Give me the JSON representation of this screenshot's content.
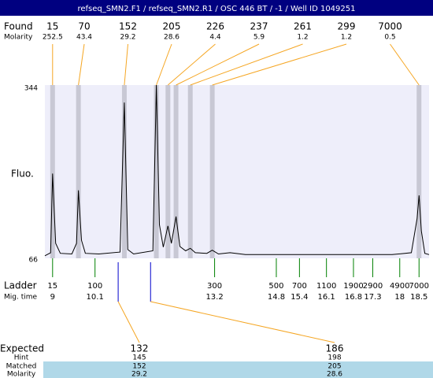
{
  "chart_data": {
    "type": "electropherogram",
    "title": "refseq_SMN2.F1 / refseq_SMN2.R1 / OSC 446 BT / -1 / Well ID 1049251",
    "ylabel": "Fluo.",
    "ylim": [
      66,
      344
    ],
    "yticks": [
      66,
      344
    ],
    "xlim": [
      8.8,
      18.76
    ],
    "trace": {
      "color": "#000000",
      "x": [
        8.8,
        8.95,
        9.0,
        9.08,
        9.2,
        9.5,
        9.62,
        9.67,
        9.75,
        9.85,
        10.2,
        10.75,
        10.86,
        10.95,
        11.1,
        11.6,
        11.69,
        11.77,
        11.87,
        11.99,
        12.08,
        12.2,
        12.3,
        12.45,
        12.57,
        12.7,
        13.0,
        13.14,
        13.3,
        13.6,
        14.0,
        15.0,
        16.0,
        17.0,
        17.8,
        18.3,
        18.45,
        18.5,
        18.56,
        18.65,
        18.76
      ],
      "values": [
        70,
        75,
        202,
        90,
        74,
        73,
        90,
        175,
        95,
        74,
        73,
        76,
        316,
        80,
        73,
        78,
        344,
        120,
        84,
        118,
        90,
        133,
        85,
        78,
        82,
        75,
        74,
        79,
        73,
        75,
        72,
        72,
        72,
        72,
        72,
        75,
        130,
        167,
        110,
        74,
        72
      ]
    },
    "found": {
      "label": "Found",
      "molarity_label": "Molarity",
      "color": "#f5a623",
      "sizes": [
        15,
        70,
        152,
        205,
        226,
        237,
        261,
        299,
        7000
      ],
      "molarity": [
        252.5,
        43.4,
        29.2,
        28.6,
        4.4,
        5.9,
        1.2,
        1.2,
        0.5
      ],
      "mig_time": [
        9.0,
        9.67,
        10.86,
        11.69,
        11.99,
        12.2,
        12.57,
        13.14,
        18.5
      ]
    },
    "ladder": {
      "label": "Ladder",
      "time_label": "Mig. time",
      "color": "#008000",
      "sizes": [
        15,
        100,
        300,
        500,
        700,
        1100,
        1900,
        2900,
        4900,
        7000
      ],
      "mig_time": [
        9,
        10.1,
        13.2,
        14.8,
        15.4,
        16.1,
        16.8,
        17.3,
        18,
        18.5
      ]
    },
    "expected": {
      "label": "Expected",
      "color": "#0000cc",
      "sizes": [
        132,
        186
      ],
      "mig_time": [
        10.7,
        11.54
      ],
      "hint_label": "Hint",
      "hint": [
        145,
        198
      ],
      "matched_label": "Matched",
      "matched": [
        152,
        205
      ],
      "molarity_label": "Molarity",
      "molarity": [
        29.2,
        28.6
      ]
    }
  }
}
